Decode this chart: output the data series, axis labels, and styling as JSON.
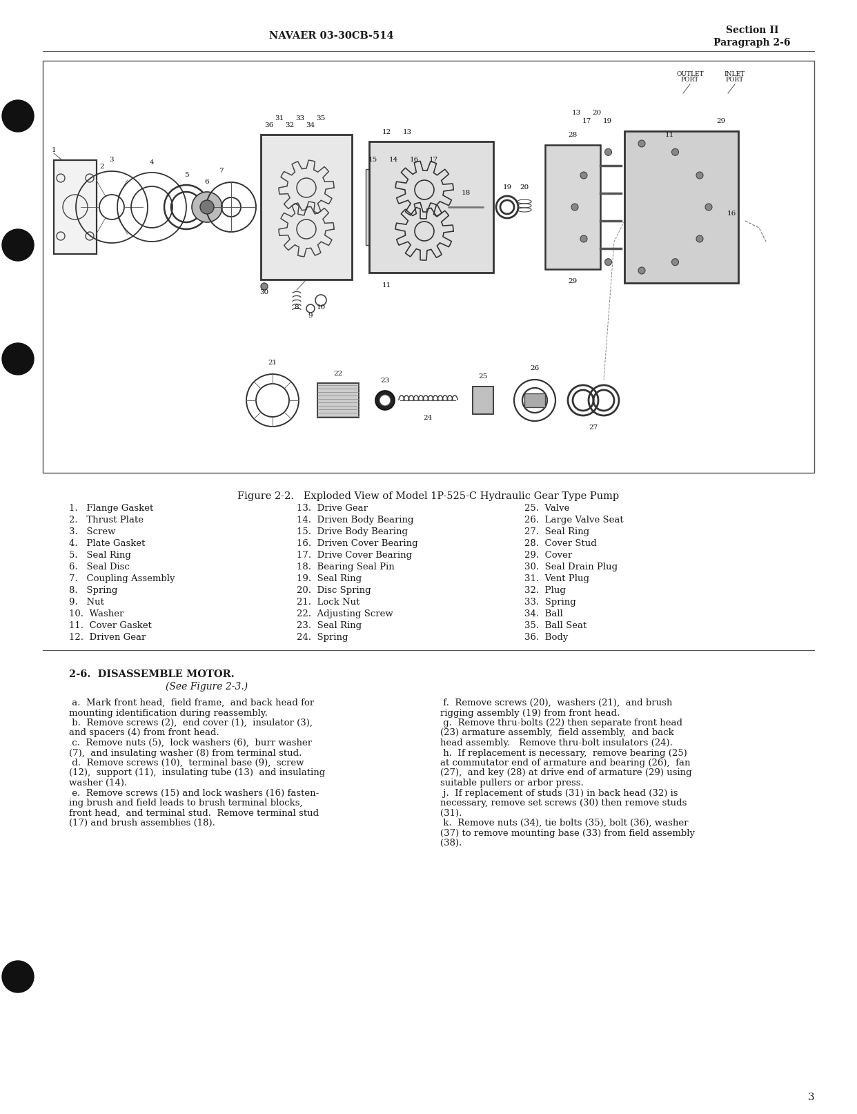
{
  "header_left": "NAVAER 03-30CB-514",
  "header_right_line1": "Section II",
  "header_right_line2": "Paragraph 2-6",
  "page_number": "3",
  "figure_caption": "Figure 2-2.   Exploded View of Model 1P-525-C Hydraulic Gear Type Pump",
  "parts_list_col1": [
    "1.   Flange Gasket",
    "2.   Thrust Plate",
    "3.   Screw",
    "4.   Plate Gasket",
    "5.   Seal Ring",
    "6.   Seal Disc",
    "7.   Coupling Assembly",
    "8.   Spring",
    "9.   Nut",
    "10.  Washer",
    "11.  Cover Gasket",
    "12.  Driven Gear"
  ],
  "parts_list_col2": [
    "13.  Drive Gear",
    "14.  Driven Body Bearing",
    "15.  Drive Body Bearing",
    "16.  Driven Cover Bearing",
    "17.  Drive Cover Bearing",
    "18.  Bearing Seal Pin",
    "19.  Seal Ring",
    "20.  Disc Spring",
    "21.  Lock Nut",
    "22.  Adjusting Screw",
    "23.  Seal Ring",
    "24.  Spring"
  ],
  "parts_list_col3": [
    "25.  Valve",
    "26.  Large Valve Seat",
    "27.  Seal Ring",
    "28.  Cover Stud",
    "29.  Cover",
    "30.  Seal Drain Plug",
    "31.  Vent Plug",
    "32.  Plug",
    "33.  Spring",
    "34.  Ball",
    "35.  Ball Seat",
    "36.  Body"
  ],
  "section_title": "2-6.  DISASSEMBLE MOTOR.",
  "section_subtitle": "(See Figure 2-3.)",
  "body_left_paras": [
    " a.  Mark front head,  field frame,  and back head for\nmounting identification during reassembly.",
    " b.  Remove screws (2),  end cover (1),  insulator (3),\nand spacers (4) from front head.",
    " c.  Remove nuts (5),  lock washers (6),  burr washer\n(7),  and insulating washer (8) from terminal stud.",
    " d.  Remove screws (10),  terminal base (9),  screw\n(12),  support (11),  insulating tube (13)  and insulating\nwasher (14).",
    " e.  Remove screws (15) and lock washers (16) fasten-\ning brush and field leads to brush terminal blocks,\nfront head,  and terminal stud.  Remove terminal stud\n(17) and brush assemblies (18)."
  ],
  "body_right_paras": [
    " f.  Remove screws (20),  washers (21),  and brush\nrigging assembly (19) from front head.",
    " g.  Remove thru-bolts (22) then separate front head\n(23) armature assembly,  field assembly,  and back\nhead assembly.   Remove thru-bolt insulators (24).",
    " h.  If replacement is necessary,  remove bearing (25)\nat commutator end of armature and bearing (26),  fan\n(27),  and key (28) at drive end of armature (29) using\nsuitable pullers or arbor press.",
    " j.  If replacement of studs (31) in back head (32) is\nnecessary, remove set screws (30) then remove studs\n(31).",
    " k.  Remove nuts (34), tie bolts (35), bolt (36), washer\n(37) to remove mounting base (33) from field assembly\n(38)."
  ],
  "bg_color": "#ffffff",
  "text_color": "#1a1a1a",
  "border_color": "#444444"
}
